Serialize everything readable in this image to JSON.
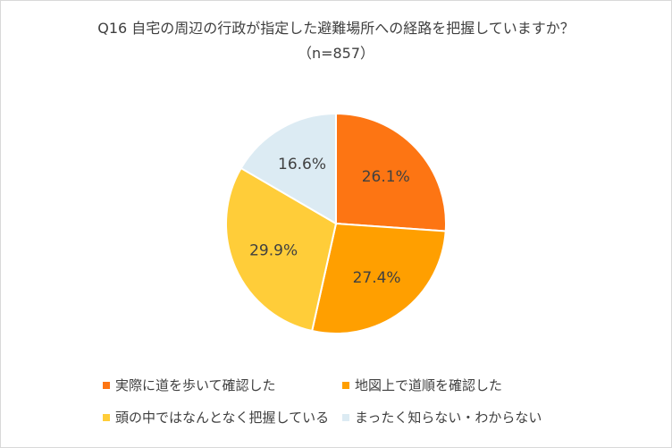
{
  "chart_data": {
    "type": "pie",
    "title": "Q16 自宅の周辺の行政が指定した避難場所への経路を把握していますか？",
    "subtitle": "（n=857）",
    "legend_position": "bottom",
    "slices": [
      {
        "name": "実際に道を歩いて確認した",
        "value": 26.1,
        "label": "26.1%",
        "color": "#fd7513"
      },
      {
        "name": "地図上で道順を確認した",
        "value": 27.4,
        "label": "27.4%",
        "color": "#ff9f00"
      },
      {
        "name": "頭の中ではなんとなく把握している",
        "value": 29.9,
        "label": "29.9%",
        "color": "#ffcd39"
      },
      {
        "name": "まったく知らない・わからない",
        "value": 16.6,
        "label": "16.6%",
        "color": "#dcebf3"
      }
    ]
  }
}
